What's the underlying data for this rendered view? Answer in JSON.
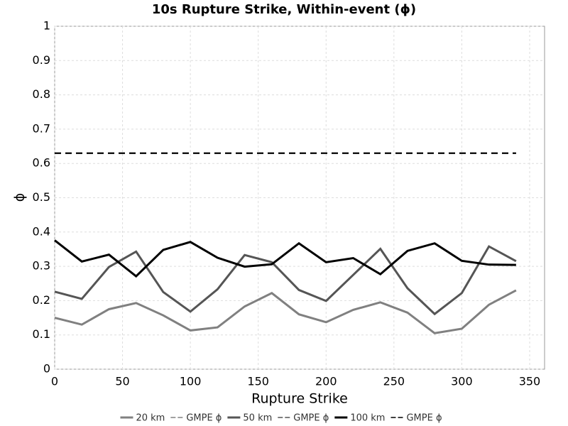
{
  "chart_data": {
    "type": "line",
    "title": "10s Rupture Strike, Within-event (ϕ)",
    "x_label": "Rupture Strike",
    "y_label": "ϕ",
    "x": [
      0,
      20,
      40,
      60,
      80,
      100,
      120,
      140,
      160,
      180,
      200,
      220,
      240,
      260,
      280,
      300,
      320,
      340
    ],
    "series": [
      {
        "name": "20 km",
        "color": "#808080",
        "dashed": false,
        "values": [
          0.15,
          0.13,
          0.175,
          0.193,
          0.157,
          0.113,
          0.122,
          0.183,
          0.222,
          0.16,
          0.137,
          0.173,
          0.195,
          0.165,
          0.105,
          0.118,
          0.188,
          0.23
        ]
      },
      {
        "name": "GMPE ϕ",
        "color": "#808080",
        "dashed": true,
        "values": [
          0.63,
          0.63,
          0.63,
          0.63,
          0.63,
          0.63,
          0.63,
          0.63,
          0.63,
          0.63,
          0.63,
          0.63,
          0.63,
          0.63,
          0.63,
          0.63,
          0.63,
          0.63
        ]
      },
      {
        "name": "50 km",
        "color": "#555555",
        "dashed": false,
        "values": [
          0.226,
          0.205,
          0.298,
          0.343,
          0.225,
          0.168,
          0.233,
          0.333,
          0.312,
          0.231,
          0.199,
          0.275,
          0.351,
          0.236,
          0.161,
          0.222,
          0.358,
          0.315
        ]
      },
      {
        "name": "GMPE ϕ",
        "color": "#555555",
        "dashed": true,
        "values": [
          0.63,
          0.63,
          0.63,
          0.63,
          0.63,
          0.63,
          0.63,
          0.63,
          0.63,
          0.63,
          0.63,
          0.63,
          0.63,
          0.63,
          0.63,
          0.63,
          0.63,
          0.63
        ]
      },
      {
        "name": "100 km",
        "color": "#000000",
        "dashed": false,
        "values": [
          0.376,
          0.314,
          0.334,
          0.271,
          0.348,
          0.371,
          0.325,
          0.299,
          0.306,
          0.367,
          0.312,
          0.324,
          0.277,
          0.345,
          0.367,
          0.316,
          0.305,
          0.304
        ]
      },
      {
        "name": "GMPE ϕ",
        "color": "#000000",
        "dashed": true,
        "values": [
          0.63,
          0.63,
          0.63,
          0.63,
          0.63,
          0.63,
          0.63,
          0.63,
          0.63,
          0.63,
          0.63,
          0.63,
          0.63,
          0.63,
          0.63,
          0.63,
          0.63,
          0.63
        ]
      }
    ],
    "xlim": [
      0,
      361
    ],
    "xticks": [
      0,
      50,
      100,
      150,
      200,
      250,
      300,
      350
    ],
    "ylim": [
      0,
      1
    ],
    "yticks": [
      0,
      0.1,
      0.2,
      0.3,
      0.4,
      0.5,
      0.6,
      0.7,
      0.8,
      0.9,
      1
    ],
    "grid": true,
    "legend": "bottom"
  }
}
